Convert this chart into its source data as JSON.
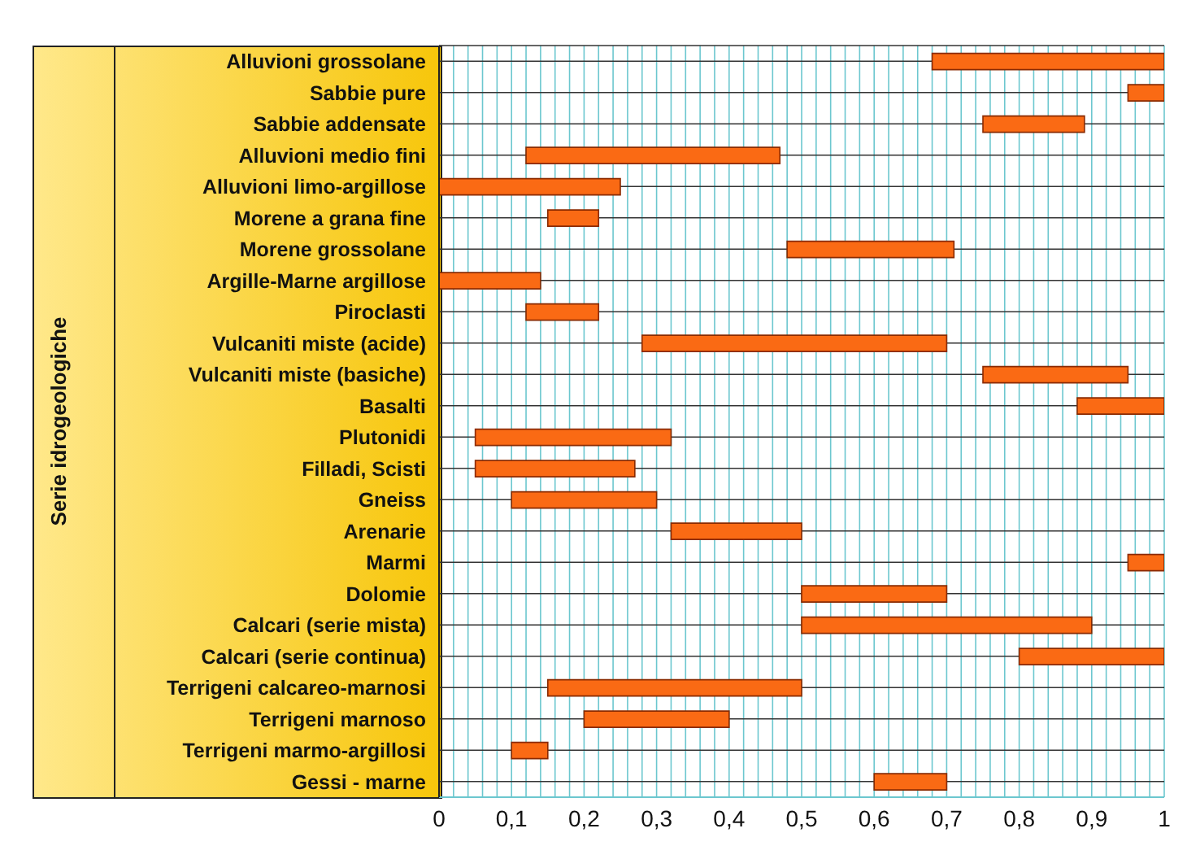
{
  "chart_data": {
    "type": "bar",
    "orientation": "horizontal",
    "ylabel": "Serie idrogeologiche",
    "categories": [
      "Alluvioni grossolane",
      "Sabbie pure",
      "Sabbie addensate",
      "Alluvioni medio fini",
      "Alluvioni limo-argillose",
      "Morene a grana fine",
      "Morene grossolane",
      "Argille-Marne argillose",
      "Piroclasti",
      "Vulcaniti miste (acide)",
      "Vulcaniti miste (basiche)",
      "Basalti",
      "Plutonidi",
      "Filladi, Scisti",
      "Gneiss",
      "Arenarie",
      "Marmi",
      "Dolomie",
      "Calcari (serie mista)",
      "Calcari (serie continua)",
      "Terrigeni calcareo-marnosi",
      "Terrigeni marnoso",
      "Terrigeni marmo-argillosi",
      "Gessi - marne"
    ],
    "base": [
      0.68,
      0.95,
      0.75,
      0.12,
      0,
      0.15,
      0.48,
      0,
      0.12,
      0.28,
      0.75,
      0.88,
      0.05,
      0.05,
      0.1,
      0.32,
      0.95,
      0.5,
      0.5,
      0.8,
      0.15,
      0.2,
      0.1,
      0.6
    ],
    "values": [
      0.32,
      0.05,
      0.14,
      0.35,
      0.25,
      0.07,
      0.23,
      0.14,
      0.1,
      0.42,
      0.2,
      0.12,
      0.27,
      0.22,
      0.2,
      0.18,
      0.05,
      0.2,
      0.4,
      0.2,
      0.35,
      0.2,
      0.05,
      0.1
    ],
    "color": "#fa6a14",
    "xlim": [
      0,
      1
    ],
    "xticks": [
      0,
      {
        "value": 0.02,
        "label": null
      },
      {
        "value": 0.04,
        "label": null
      },
      {
        "value": 0.06,
        "label": null
      },
      {
        "value": 0.08,
        "label": null
      },
      {
        "value": 0.1,
        "label": "0,1"
      },
      {
        "value": 0.12,
        "label": null
      },
      {
        "value": 0.14,
        "label": null
      },
      {
        "value": 0.16,
        "label": null
      },
      {
        "value": 0.18,
        "label": null
      },
      {
        "value": 0.2,
        "label": "0,2"
      },
      {
        "value": 0.22,
        "label": null
      },
      {
        "value": 0.24,
        "label": null
      },
      {
        "value": 0.26,
        "label": null
      },
      {
        "value": 0.28,
        "label": null
      },
      {
        "value": 0.3,
        "label": "0,3"
      },
      {
        "value": 0.32,
        "label": null
      },
      {
        "value": 0.34,
        "label": null
      },
      {
        "value": 0.36,
        "label": null
      },
      {
        "value": 0.38,
        "label": null
      },
      {
        "value": 0.4,
        "label": "0,4"
      },
      {
        "value": 0.42,
        "label": null
      },
      {
        "value": 0.44,
        "label": null
      },
      {
        "value": 0.46,
        "label": null
      },
      {
        "value": 0.48,
        "label": null
      },
      {
        "value": 0.5,
        "label": "0,5"
      },
      {
        "value": 0.52,
        "label": null
      },
      {
        "value": 0.54,
        "label": null
      },
      {
        "value": 0.56,
        "label": null
      },
      {
        "value": 0.58,
        "label": null
      },
      {
        "value": 0.6,
        "label": "0,6"
      },
      {
        "value": 0.62,
        "label": null
      },
      {
        "value": 0.64,
        "label": null
      },
      {
        "value": 0.66,
        "label": null
      },
      {
        "value": 0.68,
        "label": null
      },
      {
        "value": 0.7,
        "label": "0,7"
      },
      {
        "value": 0.72,
        "label": null
      },
      {
        "value": 0.74,
        "label": null
      },
      {
        "value": 0.76,
        "label": null
      },
      {
        "value": 0.78,
        "label": null
      },
      {
        "value": 0.8,
        "label": "0,8"
      },
      {
        "value": 0.82,
        "label": null
      },
      {
        "value": 0.84,
        "label": null
      },
      {
        "value": 0.86,
        "label": null
      },
      {
        "value": 0.88,
        "label": null
      },
      {
        "value": 0.9,
        "label": "0,9"
      },
      {
        "value": 0.92,
        "label": null
      },
      {
        "value": 0.94,
        "label": null
      },
      {
        "value": 0.96,
        "label": null
      },
      {
        "value": 0.98,
        "label": null
      },
      1
    ],
    "grid": true
  }
}
